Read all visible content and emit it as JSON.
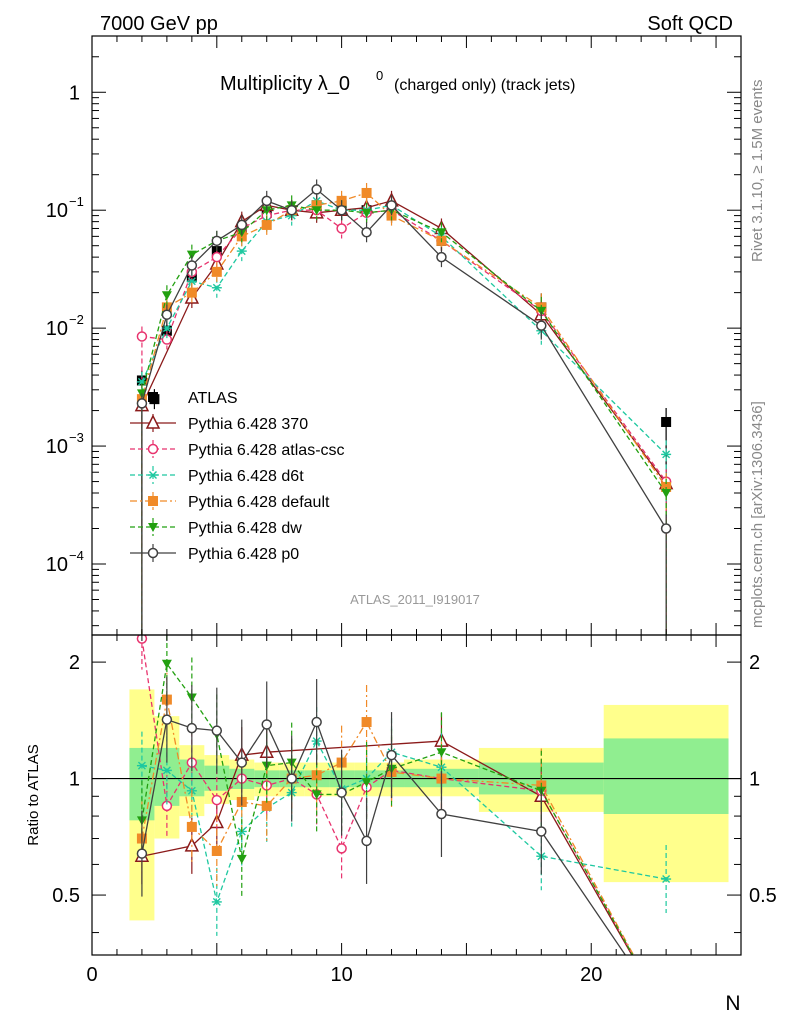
{
  "header": {
    "left": "7000 GeV pp",
    "right": "Soft QCD"
  },
  "side_labels": {
    "rivet": "Rivet 3.1.10, ≥ 1.5M events",
    "mcplots": "mcplots.cern.ch [arXiv:1306.3436]"
  },
  "chart_data": [
    {
      "type": "scatter",
      "title": "Multiplicity λ_0",
      "title_sup": "0",
      "title_suffix": "(charged only) (track jets)",
      "analysis": "ATLAS_2011_I919017",
      "xlabel": "N",
      "ylabel": "",
      "xlim": [
        0,
        26
      ],
      "ylim": [
        2.5e-05,
        3
      ],
      "log_y": true,
      "yticks": [
        "10^-4",
        "10^-3",
        "10^-2",
        "10^-1",
        "1"
      ],
      "xticks": [
        0,
        10,
        20
      ],
      "legend_position": "middle-left",
      "series": [
        {
          "name": "ATLAS",
          "color": "#000000",
          "marker": "filled-square",
          "style": "points",
          "x": [
            2,
            2.5,
            3,
            4,
            5,
            6,
            7,
            8,
            9,
            10,
            11,
            12,
            14,
            18,
            23
          ],
          "y": [
            0.0036,
            0.0025,
            0.0095,
            0.027,
            0.045,
            0.07,
            0.095,
            0.1,
            0.11,
            0.11,
            0.1,
            0.095,
            0.055,
            0.015,
            0.0016
          ]
        },
        {
          "name": "Pythia 6.428 370",
          "color": "#8b1a1a",
          "marker": "open-triangle",
          "style": "solid",
          "x": [
            2,
            4,
            5,
            6,
            7,
            8,
            9,
            10,
            11,
            12,
            14,
            18,
            23
          ],
          "y": [
            0.0022,
            0.018,
            0.035,
            0.08,
            0.11,
            0.1,
            0.095,
            0.1,
            0.105,
            0.12,
            0.07,
            0.013,
            0.00048
          ]
        },
        {
          "name": "Pythia 6.428 atlas-csc",
          "color": "#e8336e",
          "marker": "open-circle",
          "style": "dashed",
          "x": [
            2,
            3,
            4,
            5,
            6,
            7,
            8,
            9,
            10,
            11,
            12,
            14,
            18,
            23
          ],
          "y": [
            0.0085,
            0.008,
            0.03,
            0.04,
            0.07,
            0.09,
            0.1,
            0.1,
            0.07,
            0.095,
            0.1,
            0.055,
            0.014,
            0.0005
          ]
        },
        {
          "name": "Pythia 6.428 d6t",
          "color": "#1ec8a0",
          "marker": "asterisk",
          "style": "dashed",
          "x": [
            2,
            3,
            4,
            5,
            6,
            7,
            8,
            9,
            10,
            11,
            12,
            14,
            18,
            23
          ],
          "y": [
            0.0035,
            0.01,
            0.025,
            0.022,
            0.045,
            0.08,
            0.09,
            0.12,
            0.1,
            0.1,
            0.11,
            0.06,
            0.0095,
            0.00085
          ]
        },
        {
          "name": "Pythia 6.428 default",
          "color": "#f08a28",
          "marker": "filled-square",
          "style": "dashdot",
          "x": [
            2,
            3,
            4,
            5,
            6,
            7,
            8,
            9,
            10,
            11,
            12,
            14,
            18,
            23
          ],
          "y": [
            0.0025,
            0.015,
            0.02,
            0.03,
            0.06,
            0.075,
            0.1,
            0.11,
            0.12,
            0.14,
            0.09,
            0.055,
            0.015,
            0.00045
          ]
        },
        {
          "name": "Pythia 6.428 dw",
          "color": "#22a010",
          "marker": "filled-triangle-down",
          "style": "dashed",
          "x": [
            2,
            3,
            4,
            5,
            6,
            7,
            8,
            9,
            10,
            11,
            12,
            14,
            18,
            23
          ],
          "y": [
            0.0028,
            0.019,
            0.042,
            0.055,
            0.065,
            0.1,
            0.11,
            0.1,
            0.1,
            0.095,
            0.1,
            0.065,
            0.014,
            0.0004
          ]
        },
        {
          "name": "Pythia 6.428 p0",
          "color": "#404040",
          "marker": "open-circle",
          "style": "solid",
          "x": [
            2,
            3,
            4,
            5,
            6,
            7,
            8,
            9,
            10,
            11,
            12,
            14,
            18,
            23
          ],
          "y": [
            0.0023,
            0.013,
            0.034,
            0.055,
            0.075,
            0.12,
            0.1,
            0.15,
            0.1,
            0.065,
            0.11,
            0.04,
            0.0105,
            0.0002
          ]
        }
      ]
    },
    {
      "type": "line",
      "ylabel": "Ratio to ATLAS",
      "xlabel": "N",
      "xlim": [
        0,
        26
      ],
      "ylim": [
        0.35,
        2.35
      ],
      "log_y": true,
      "yticks": [
        0.5,
        1,
        2
      ],
      "xticks": [
        0,
        10,
        20
      ],
      "bands": [
        {
          "x0": 1.5,
          "x1": 2.5,
          "inner": [
            0.78,
            1.2
          ],
          "outer": [
            0.43,
            1.7
          ]
        },
        {
          "x0": 2.5,
          "x1": 3.5,
          "inner": [
            0.85,
            1.2
          ],
          "outer": [
            0.7,
            1.45
          ]
        },
        {
          "x0": 3.5,
          "x1": 4.5,
          "inner": [
            0.9,
            1.12
          ],
          "outer": [
            0.8,
            1.22
          ]
        },
        {
          "x0": 4.5,
          "x1": 5.5,
          "inner": [
            0.93,
            1.08
          ],
          "outer": [
            0.86,
            1.15
          ]
        },
        {
          "x0": 5.5,
          "x1": 6.5,
          "inner": [
            0.94,
            1.06
          ],
          "outer": [
            0.88,
            1.12
          ]
        },
        {
          "x0": 6.5,
          "x1": 7.5,
          "inner": [
            0.95,
            1.05
          ],
          "outer": [
            0.9,
            1.1
          ]
        },
        {
          "x0": 7.5,
          "x1": 8.5,
          "inner": [
            0.95,
            1.05
          ],
          "outer": [
            0.9,
            1.1
          ]
        },
        {
          "x0": 8.5,
          "x1": 9.5,
          "inner": [
            0.95,
            1.05
          ],
          "outer": [
            0.9,
            1.1
          ]
        },
        {
          "x0": 9.5,
          "x1": 10.5,
          "inner": [
            0.95,
            1.05
          ],
          "outer": [
            0.9,
            1.1
          ]
        },
        {
          "x0": 10.5,
          "x1": 11.5,
          "inner": [
            0.95,
            1.05
          ],
          "outer": [
            0.9,
            1.1
          ]
        },
        {
          "x0": 11.5,
          "x1": 12.5,
          "inner": [
            0.95,
            1.05
          ],
          "outer": [
            0.9,
            1.1
          ]
        },
        {
          "x0": 12.5,
          "x1": 15.5,
          "inner": [
            0.95,
            1.06
          ],
          "outer": [
            0.9,
            1.12
          ]
        },
        {
          "x0": 15.5,
          "x1": 20.5,
          "inner": [
            0.91,
            1.1
          ],
          "outer": [
            0.82,
            1.2
          ]
        },
        {
          "x0": 20.5,
          "x1": 25.5,
          "inner": [
            0.81,
            1.27
          ],
          "outer": [
            0.54,
            1.55
          ]
        }
      ],
      "series": [
        {
          "name": "Pythia 6.428 370",
          "x": [
            2,
            4,
            5,
            6,
            7,
            14,
            18
          ],
          "y": [
            0.63,
            0.67,
            0.77,
            1.15,
            1.17,
            1.25,
            0.9
          ]
        },
        {
          "name": "Pythia 6.428 atlas-csc",
          "x": [
            2,
            3,
            4,
            5,
            6,
            7,
            8,
            9,
            10,
            11,
            12,
            14,
            18
          ],
          "y": [
            2.3,
            0.85,
            1.1,
            0.88,
            1.0,
            0.96,
            1.0,
            0.91,
            0.66,
            0.95,
            1.05,
            1.0,
            0.93
          ]
        },
        {
          "name": "Pythia 6.428 d6t",
          "x": [
            2,
            3,
            4,
            5,
            6,
            7,
            8,
            9,
            10,
            11,
            12,
            14,
            18,
            23
          ],
          "y": [
            1.08,
            1.05,
            0.93,
            0.48,
            0.73,
            0.84,
            0.92,
            1.25,
            0.94,
            1.0,
            1.17,
            1.07,
            0.63,
            0.55
          ]
        },
        {
          "name": "Pythia 6.428 default",
          "x": [
            2,
            3,
            4,
            5,
            6,
            7,
            8,
            9,
            10,
            11,
            12,
            14,
            18
          ],
          "y": [
            0.7,
            1.6,
            0.75,
            0.65,
            0.87,
            0.85,
            1.0,
            1.02,
            1.1,
            1.4,
            1.04,
            1.0,
            0.96
          ]
        },
        {
          "name": "Pythia 6.428 dw",
          "x": [
            2,
            3,
            4,
            5,
            6,
            7,
            8,
            9,
            10,
            11,
            12,
            14,
            18
          ],
          "y": [
            0.78,
            1.98,
            1.62,
            1.3,
            0.62,
            1.08,
            1.1,
            0.91,
            0.91,
            0.98,
            1.06,
            1.17,
            0.93
          ]
        },
        {
          "name": "Pythia 6.428 p0",
          "x": [
            2,
            3,
            4,
            5,
            6,
            7,
            8,
            9,
            10,
            11,
            12,
            14,
            18
          ],
          "y": [
            0.64,
            1.42,
            1.35,
            1.33,
            1.1,
            1.38,
            1.0,
            1.4,
            0.92,
            0.69,
            1.15,
            0.81,
            0.73
          ]
        }
      ]
    }
  ]
}
